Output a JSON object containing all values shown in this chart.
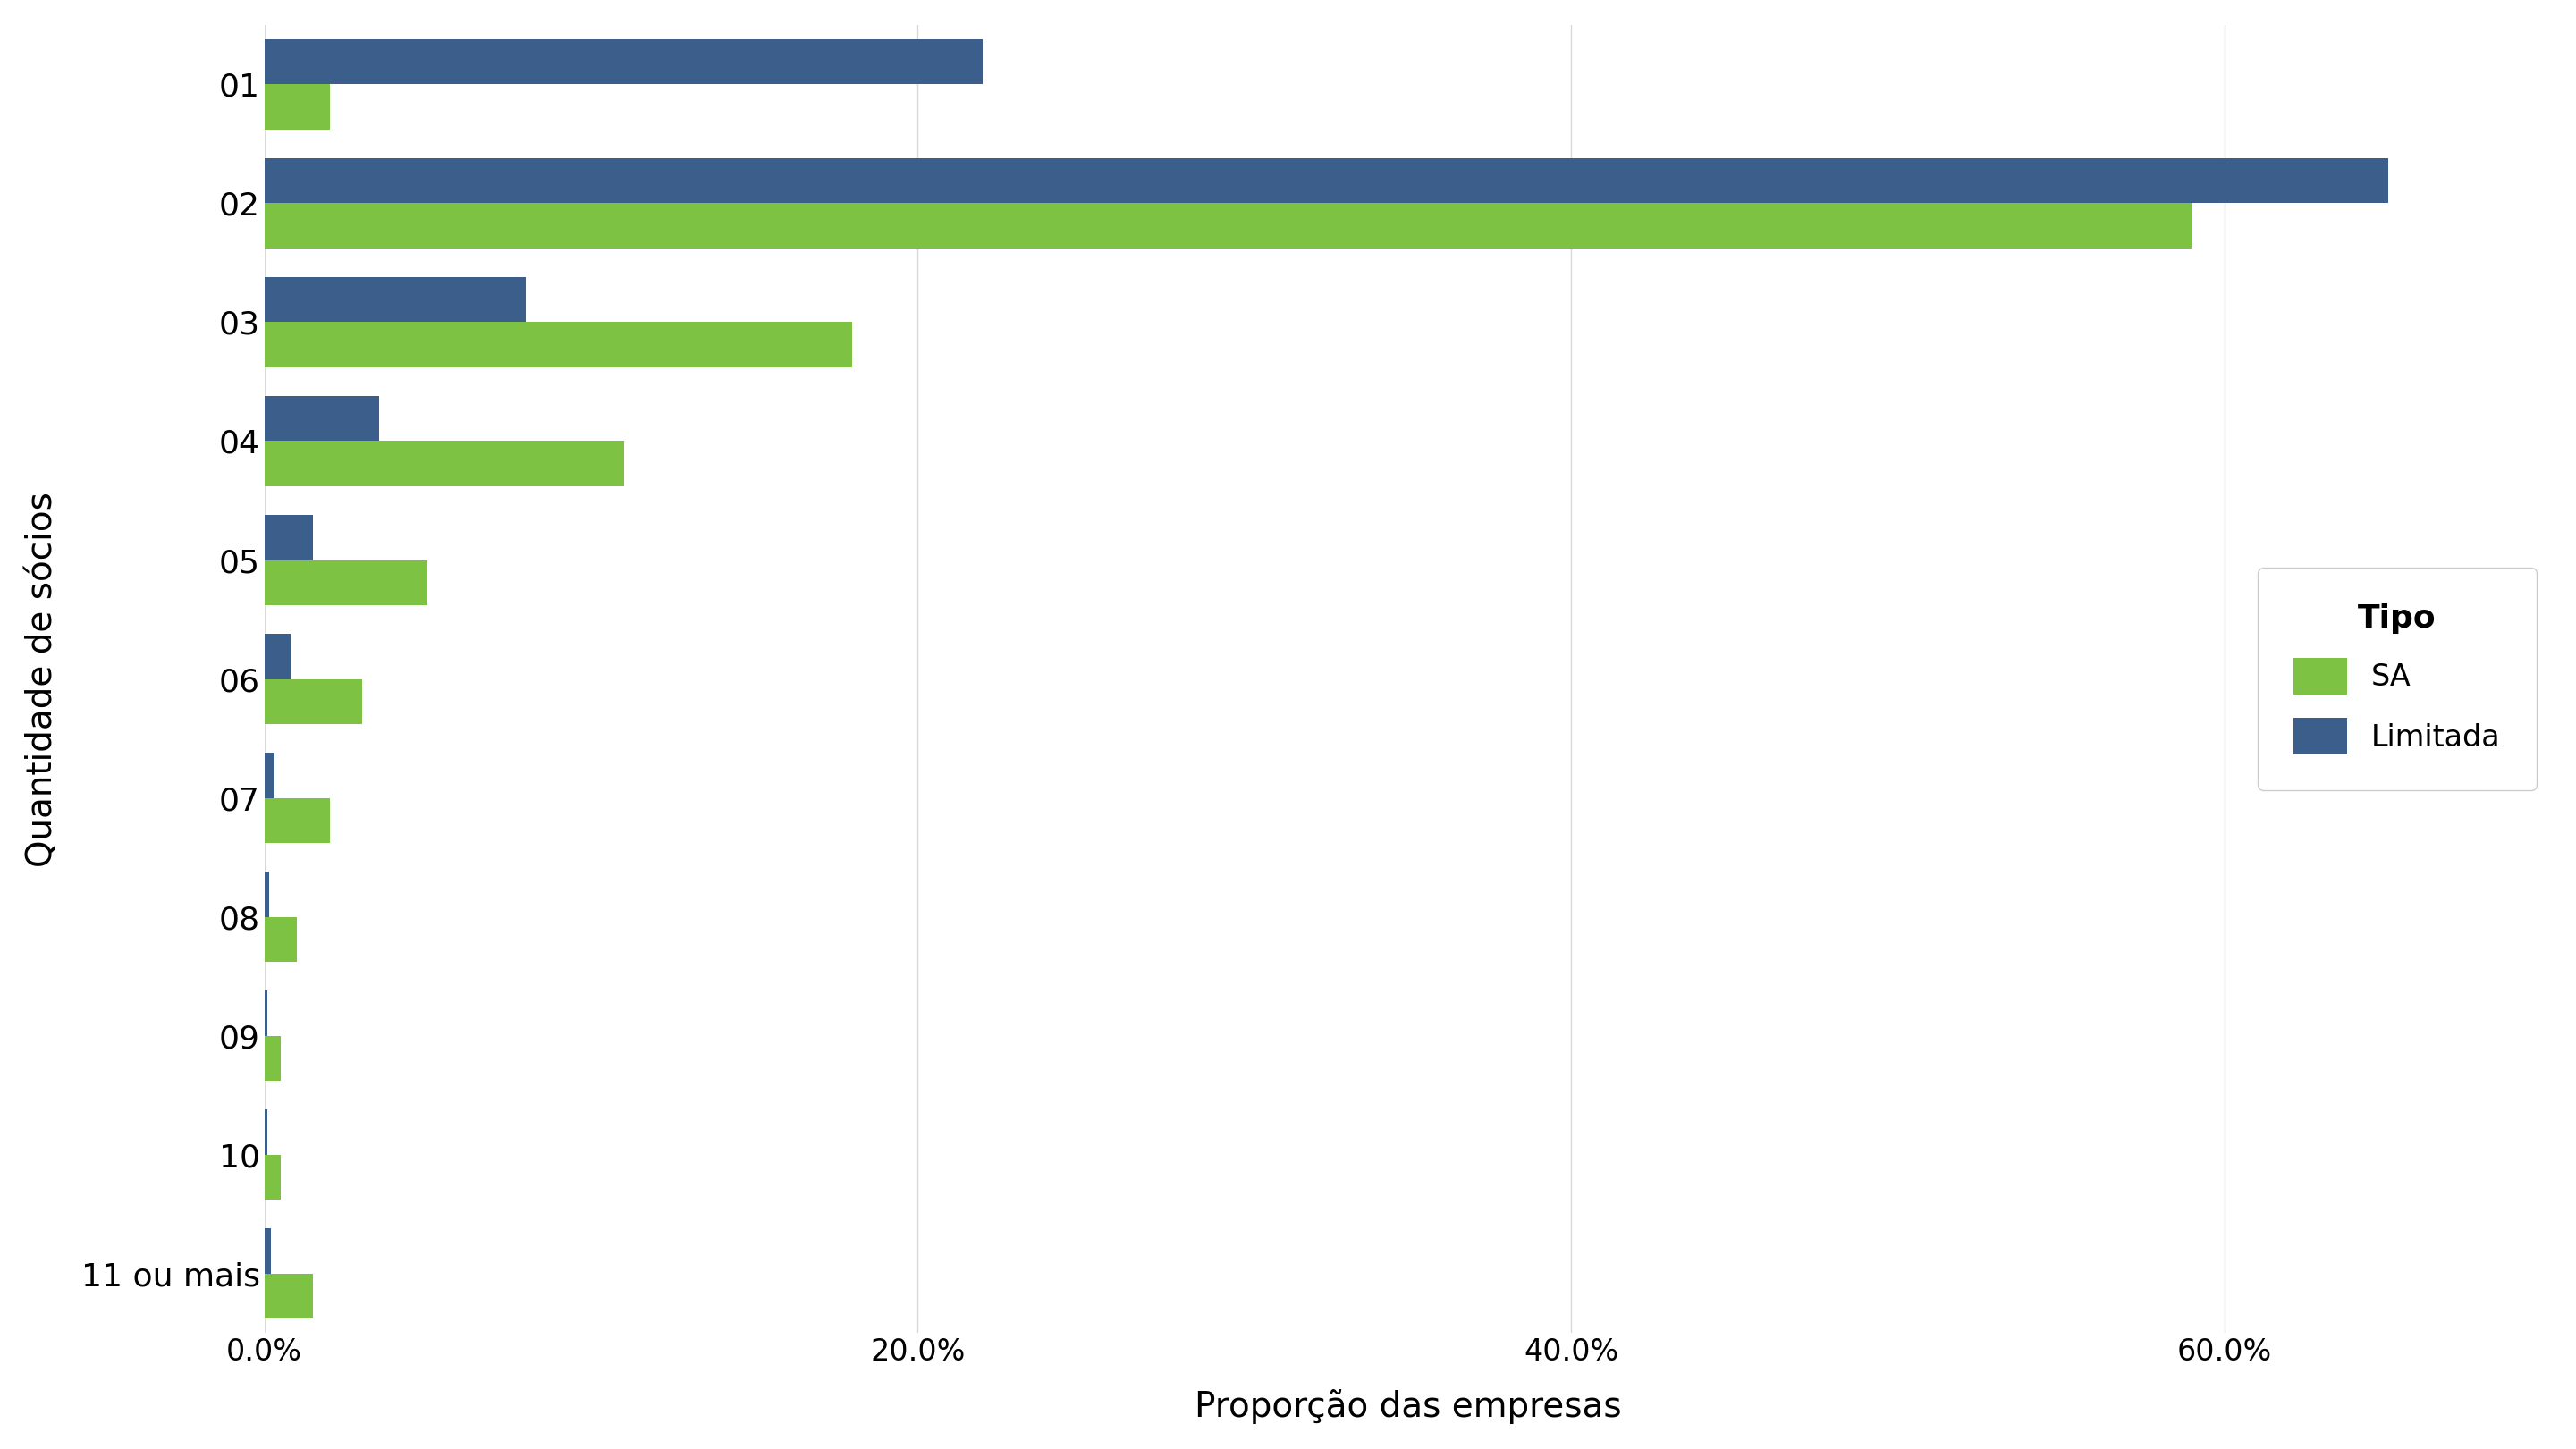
{
  "categories": [
    "01",
    "02",
    "03",
    "04",
    "05",
    "06",
    "07",
    "08",
    "09",
    "10",
    "11 ou mais"
  ],
  "SA": [
    2.0,
    59.0,
    18.0,
    11.0,
    5.0,
    3.0,
    2.0,
    1.0,
    0.5,
    0.5,
    1.5
  ],
  "Limitada": [
    22.0,
    65.0,
    8.0,
    3.5,
    1.5,
    0.8,
    0.3,
    0.15,
    0.08,
    0.08,
    0.2
  ],
  "color_SA": "#7dc242",
  "color_Limitada": "#3b5f8a",
  "xlabel": "Proporção das empresas",
  "ylabel": "Quantidade de sócios",
  "legend_title": "Tipo",
  "background_color": "#ffffff",
  "grid_color": "#d9d9d9",
  "bar_height": 0.38,
  "xlim": [
    0,
    70
  ],
  "xticks": [
    0,
    20,
    40,
    60
  ]
}
